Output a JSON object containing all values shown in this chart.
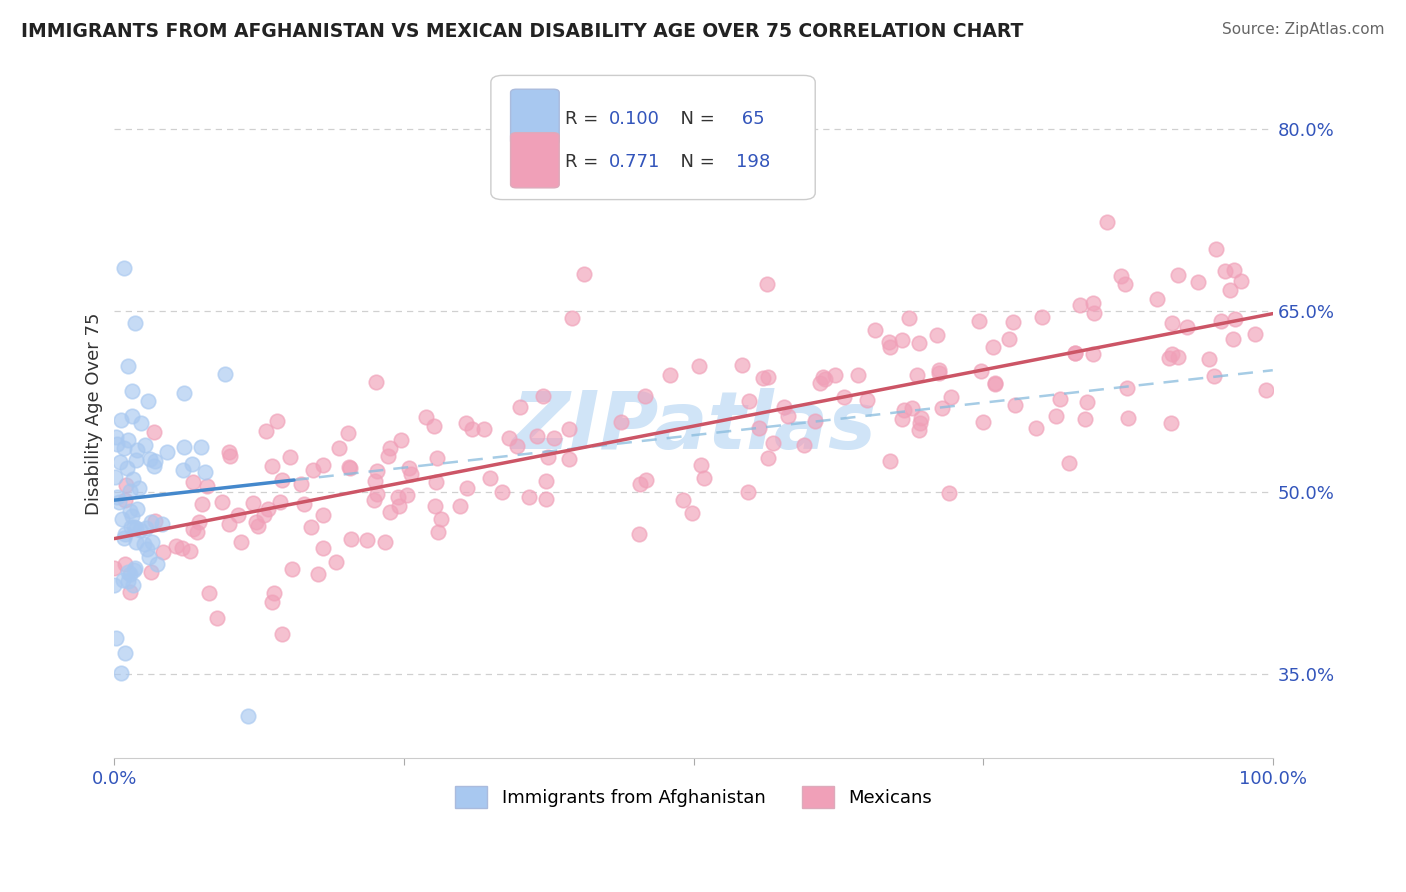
{
  "title": "IMMIGRANTS FROM AFGHANISTAN VS MEXICAN DISABILITY AGE OVER 75 CORRELATION CHART",
  "source_text": "Source: ZipAtlas.com",
  "ylabel": "Disability Age Over 75",
  "xmin": 0.0,
  "xmax": 1.0,
  "ymin": 0.28,
  "ymax": 0.85,
  "right_yticks": [
    0.35,
    0.5,
    0.65,
    0.8
  ],
  "right_ytick_labels": [
    "35.0%",
    "50.0%",
    "65.0%",
    "80.0%"
  ],
  "afghanistan_R": 0.1,
  "afghanistan_N": 65,
  "mexican_R": 0.771,
  "mexican_N": 198,
  "afghanistan_color": "#a8c8f0",
  "mexican_color": "#f0a0b8",
  "afghanistan_line_color": "#4488cc",
  "afghan_dashed_color": "#88bbdd",
  "mexican_line_color": "#cc5566",
  "background_color": "#ffffff",
  "watermark_color": "#d0e4f7",
  "watermark_text": "ZIPatlas",
  "grid_color": "#d0d0d0",
  "title_color": "#222222",
  "source_color": "#666666",
  "axis_label_color": "#3355bb",
  "legend_text_color": "#333333",
  "legend_number_color": "#3355bb"
}
